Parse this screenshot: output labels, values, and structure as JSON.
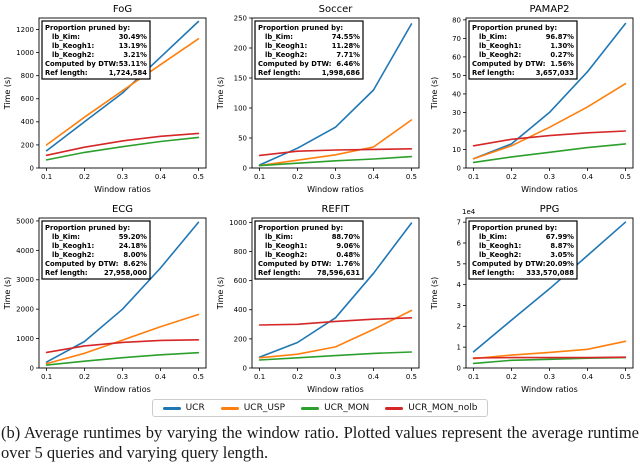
{
  "figure": {
    "caption": "(b) Average runtimes by varying the window ratio.  Plotted values represent the average runtime over 5 queries and varying query length.",
    "legend": {
      "items": [
        {
          "label": "UCR",
          "color": "#1f77b4"
        },
        {
          "label": "UCR_USP",
          "color": "#ff7f0e"
        },
        {
          "label": "UCR_MON",
          "color": "#2ca02c"
        },
        {
          "label": "UCR_MON_nolb",
          "color": "#d62728"
        }
      ]
    }
  },
  "chart_data": [
    {
      "type": "line",
      "title": "FoG",
      "xlabel": "Window ratios",
      "ylabel": "Time (s)",
      "x": [
        0.1,
        0.2,
        0.3,
        0.4,
        0.5
      ],
      "xtick_labels": [
        "0.1",
        "0.2",
        "0.3",
        "0.4",
        "0.5"
      ],
      "xlim": [
        0.08,
        0.52
      ],
      "ylim": [
        0,
        1300
      ],
      "yticks": [
        0,
        200,
        400,
        600,
        800,
        1000,
        1200
      ],
      "offset_label": "",
      "info_box": {
        "header": "Proportion pruned by:",
        "rows": [
          {
            "label": "lb_Kim:",
            "value": "30.49%"
          },
          {
            "label": "lb_Keogh1:",
            "value": "13.19%"
          },
          {
            "label": "lb_Keogh2:",
            "value": "3.21%"
          },
          {
            "label": "Computed by DTW:",
            "value": "53.11%"
          },
          {
            "label": "Ref length:",
            "value": "1,724,584"
          }
        ]
      },
      "series": [
        {
          "name": "UCR",
          "color": "#1f77b4",
          "values": [
            150,
            400,
            650,
            960,
            1270
          ]
        },
        {
          "name": "UCR_USP",
          "color": "#ff7f0e",
          "values": [
            200,
            440,
            670,
            895,
            1120
          ]
        },
        {
          "name": "UCR_MON",
          "color": "#2ca02c",
          "values": [
            70,
            135,
            185,
            230,
            265
          ]
        },
        {
          "name": "UCR_MON_nolb",
          "color": "#d62728",
          "values": [
            110,
            180,
            235,
            275,
            300
          ]
        }
      ]
    },
    {
      "type": "line",
      "title": "Soccer",
      "xlabel": "Window ratios",
      "ylabel": "Time (s)",
      "x": [
        0.1,
        0.2,
        0.3,
        0.4,
        0.5
      ],
      "xtick_labels": [
        "0.1",
        "0.2",
        "0.3",
        "0.4",
        "0.5"
      ],
      "xlim": [
        0.08,
        0.52
      ],
      "ylim": [
        0,
        250
      ],
      "yticks": [
        0,
        50,
        100,
        150,
        200,
        250
      ],
      "offset_label": "",
      "info_box": {
        "header": "Proportion pruned by:",
        "rows": [
          {
            "label": "lb_Kim:",
            "value": "74.55%"
          },
          {
            "label": "lb_Keogh1:",
            "value": "11.28%"
          },
          {
            "label": "lb_Keogh2:",
            "value": "7.71%"
          },
          {
            "label": "Computed by DTW:",
            "value": "6.46%"
          },
          {
            "label": "Ref length:",
            "value": "1,998,686"
          }
        ]
      },
      "series": [
        {
          "name": "UCR",
          "color": "#1f77b4",
          "values": [
            5,
            33,
            68,
            130,
            240
          ]
        },
        {
          "name": "UCR_USP",
          "color": "#ff7f0e",
          "values": [
            4,
            13,
            22,
            35,
            80
          ]
        },
        {
          "name": "UCR_MON",
          "color": "#2ca02c",
          "values": [
            4,
            8,
            12,
            15,
            19
          ]
        },
        {
          "name": "UCR_MON_nolb",
          "color": "#d62728",
          "values": [
            21,
            28,
            30,
            31,
            32
          ]
        }
      ]
    },
    {
      "type": "line",
      "title": "PAMAP2",
      "xlabel": "Window ratios",
      "ylabel": "Time (s)",
      "x": [
        0.1,
        0.2,
        0.3,
        0.4,
        0.5
      ],
      "xtick_labels": [
        "0.1",
        "0.2",
        "0.3",
        "0.4",
        "0.5"
      ],
      "xlim": [
        0.08,
        0.52
      ],
      "ylim": [
        0,
        81
      ],
      "yticks": [
        0,
        10,
        20,
        30,
        40,
        50,
        60,
        70,
        80
      ],
      "offset_label": "",
      "info_box": {
        "header": "Proportion pruned by:",
        "rows": [
          {
            "label": "lb_Kim:",
            "value": "96.87%"
          },
          {
            "label": "lb_Keogh1:",
            "value": "1.30%"
          },
          {
            "label": "lb_Keogh2:",
            "value": "0.27%"
          },
          {
            "label": "Computed by DTW:",
            "value": "1.56%"
          },
          {
            "label": "Ref length:",
            "value": "3,657,033"
          }
        ]
      },
      "series": [
        {
          "name": "UCR",
          "color": "#1f77b4",
          "values": [
            5,
            13,
            30,
            52,
            78
          ]
        },
        {
          "name": "UCR_USP",
          "color": "#ff7f0e",
          "values": [
            5,
            12,
            22,
            33,
            45.5
          ]
        },
        {
          "name": "UCR_MON",
          "color": "#2ca02c",
          "values": [
            3,
            6,
            8.5,
            11,
            13
          ]
        },
        {
          "name": "UCR_MON_nolb",
          "color": "#d62728",
          "values": [
            12,
            15.5,
            17.5,
            19,
            20
          ]
        }
      ]
    },
    {
      "type": "line",
      "title": "ECG",
      "xlabel": "Window ratios",
      "ylabel": "Time (s)",
      "x": [
        0.1,
        0.2,
        0.3,
        0.4,
        0.5
      ],
      "xtick_labels": [
        "0.1",
        "0.2",
        "0.3",
        "0.4",
        "0.5"
      ],
      "xlim": [
        0.08,
        0.52
      ],
      "ylim": [
        0,
        5100
      ],
      "yticks": [
        0,
        1000,
        2000,
        3000,
        4000,
        5000
      ],
      "offset_label": "",
      "info_box": {
        "header": "Proportion pruned by:",
        "rows": [
          {
            "label": "lb_Kim:",
            "value": "59.20%"
          },
          {
            "label": "lb_Keogh1:",
            "value": "24.18%"
          },
          {
            "label": "lb_Keogh2:",
            "value": "8.00%"
          },
          {
            "label": "Computed by DTW:",
            "value": "8.62%"
          },
          {
            "label": "Ref length:",
            "value": "27,958,000"
          }
        ]
      },
      "series": [
        {
          "name": "UCR",
          "color": "#1f77b4",
          "values": [
            200,
            900,
            2000,
            3400,
            4950
          ]
        },
        {
          "name": "UCR_USP",
          "color": "#ff7f0e",
          "values": [
            150,
            500,
            950,
            1400,
            1820
          ]
        },
        {
          "name": "UCR_MON",
          "color": "#2ca02c",
          "values": [
            100,
            230,
            350,
            450,
            520
          ]
        },
        {
          "name": "UCR_MON_nolb",
          "color": "#d62728",
          "values": [
            530,
            750,
            870,
            940,
            960
          ]
        }
      ]
    },
    {
      "type": "line",
      "title": "REFIT",
      "xlabel": "Window ratios",
      "ylabel": "Time (s)",
      "x": [
        0.1,
        0.2,
        0.3,
        0.4,
        0.5
      ],
      "xtick_labels": [
        "0.1",
        "0.2",
        "0.3",
        "0.4",
        "0.5"
      ],
      "xlim": [
        0.08,
        0.52
      ],
      "ylim": [
        0,
        1030
      ],
      "yticks": [
        0,
        200,
        400,
        600,
        800,
        1000
      ],
      "offset_label": "",
      "info_box": {
        "header": "Proportion pruned by:",
        "rows": [
          {
            "label": "lb_Kim:",
            "value": "88.70%"
          },
          {
            "label": "lb_Keogh1:",
            "value": "9.06%"
          },
          {
            "label": "lb_Keogh2:",
            "value": "0.48%"
          },
          {
            "label": "Computed by DTW:",
            "value": "1.76%"
          },
          {
            "label": "Ref length:",
            "value": "78,596,631"
          }
        ]
      },
      "series": [
        {
          "name": "UCR",
          "color": "#1f77b4",
          "values": [
            75,
            175,
            345,
            650,
            995
          ]
        },
        {
          "name": "UCR_USP",
          "color": "#ff7f0e",
          "values": [
            70,
            95,
            145,
            265,
            395
          ]
        },
        {
          "name": "UCR_MON",
          "color": "#2ca02c",
          "values": [
            55,
            70,
            85,
            100,
            110
          ]
        },
        {
          "name": "UCR_MON_nolb",
          "color": "#d62728",
          "values": [
            295,
            300,
            320,
            335,
            345
          ]
        }
      ]
    },
    {
      "type": "line",
      "title": "PPG",
      "xlabel": "Window ratios",
      "ylabel": "Time (s)",
      "x": [
        0.1,
        0.2,
        0.3,
        0.4,
        0.5
      ],
      "xtick_labels": [
        "0.1",
        "0.2",
        "0.3",
        "0.4",
        "0.5"
      ],
      "xlim": [
        0.08,
        0.52
      ],
      "ylim": [
        0,
        7.2
      ],
      "yticks": [
        0,
        1,
        2,
        3,
        4,
        5,
        6,
        7
      ],
      "offset_label": "1e4",
      "info_box": {
        "header": "Proportion pruned by:",
        "rows": [
          {
            "label": "lb_Kim:",
            "value": "67.99%"
          },
          {
            "label": "lb_Keogh1:",
            "value": "8.87%"
          },
          {
            "label": "lb_Keogh2:",
            "value": "3.05%"
          },
          {
            "label": "Computed by DTW:",
            "value": "20.09%"
          },
          {
            "label": "Ref length:",
            "value": "333,570,088"
          }
        ]
      },
      "series": [
        {
          "name": "UCR",
          "color": "#1f77b4",
          "values": [
            0.78,
            2.3,
            3.8,
            5.4,
            7.0
          ]
        },
        {
          "name": "UCR_USP",
          "color": "#ff7f0e",
          "values": [
            0.45,
            0.62,
            0.75,
            0.9,
            1.28
          ]
        },
        {
          "name": "UCR_MON",
          "color": "#2ca02c",
          "values": [
            0.22,
            0.37,
            0.42,
            0.47,
            0.5
          ]
        },
        {
          "name": "UCR_MON_nolb",
          "color": "#d62728",
          "values": [
            0.48,
            0.5,
            0.5,
            0.5,
            0.52
          ]
        }
      ]
    }
  ]
}
